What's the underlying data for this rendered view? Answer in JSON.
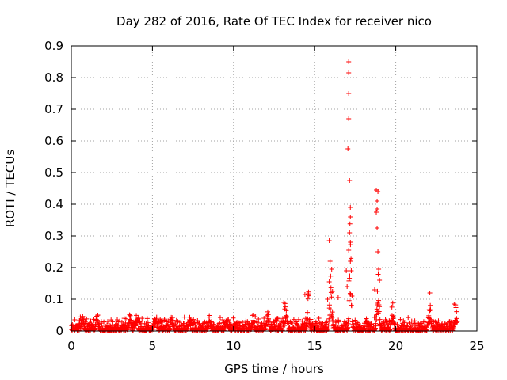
{
  "chart_data": {
    "type": "scatter",
    "title": "Day 282 of 2016, Rate Of TEC Index for receiver nico",
    "xlabel": "GPS time / hours",
    "ylabel": "ROTI / TECUs",
    "xlim": [
      0,
      25
    ],
    "ylim": [
      0,
      0.9
    ],
    "grid": true,
    "marker": "+",
    "marker_color": "#ff0000",
    "xticks": [
      "0",
      "5",
      "10",
      "15",
      "20",
      "25"
    ],
    "yticks": [
      "0",
      "0.1",
      "0.2",
      "0.3",
      "0.4",
      "0.5",
      "0.6",
      "0.7",
      "0.8",
      "0.9"
    ],
    "xtick_values": [
      0,
      5,
      10,
      15,
      20,
      25
    ],
    "ytick_values": [
      0,
      0.1,
      0.2,
      0.3,
      0.4,
      0.5,
      0.6,
      0.7,
      0.8,
      0.9
    ],
    "baseline": {
      "x_start": 0,
      "x_end": 23.8,
      "typical_max": 0.035
    },
    "bumps": [
      {
        "x": 0.7,
        "peak": 0.05
      },
      {
        "x": 1.6,
        "peak": 0.065
      },
      {
        "x": 3.6,
        "peak": 0.055
      },
      {
        "x": 4.0,
        "peak": 0.05
      },
      {
        "x": 5.2,
        "peak": 0.07
      },
      {
        "x": 6.2,
        "peak": 0.06
      },
      {
        "x": 7.3,
        "peak": 0.07
      },
      {
        "x": 8.5,
        "peak": 0.05
      },
      {
        "x": 9.6,
        "peak": 0.05
      },
      {
        "x": 11.2,
        "peak": 0.06
      },
      {
        "x": 12.1,
        "peak": 0.065
      },
      {
        "x": 13.2,
        "peak": 0.095
      },
      {
        "x": 14.6,
        "peak": 0.13
      },
      {
        "x": 16.0,
        "peak": 0.2
      },
      {
        "x": 17.2,
        "peak": 0.38
      },
      {
        "x": 18.9,
        "peak": 0.2
      },
      {
        "x": 19.8,
        "peak": 0.11
      },
      {
        "x": 22.1,
        "peak": 0.09
      },
      {
        "x": 23.7,
        "peak": 0.085
      }
    ],
    "outliers": [
      {
        "x": 17.1,
        "y": 0.85
      },
      {
        "x": 17.1,
        "y": 0.815
      },
      {
        "x": 17.1,
        "y": 0.75
      },
      {
        "x": 17.1,
        "y": 0.67
      },
      {
        "x": 17.05,
        "y": 0.575
      },
      {
        "x": 17.15,
        "y": 0.475
      },
      {
        "x": 17.2,
        "y": 0.39
      },
      {
        "x": 17.2,
        "y": 0.36
      },
      {
        "x": 17.15,
        "y": 0.31
      },
      {
        "x": 17.2,
        "y": 0.28
      },
      {
        "x": 17.1,
        "y": 0.255
      },
      {
        "x": 17.2,
        "y": 0.22
      },
      {
        "x": 16.95,
        "y": 0.19
      },
      {
        "x": 17.0,
        "y": 0.14
      },
      {
        "x": 16.45,
        "y": 0.105
      },
      {
        "x": 15.9,
        "y": 0.285
      },
      {
        "x": 15.95,
        "y": 0.22
      },
      {
        "x": 16.05,
        "y": 0.195
      },
      {
        "x": 15.9,
        "y": 0.155
      },
      {
        "x": 16.1,
        "y": 0.125
      },
      {
        "x": 15.8,
        "y": 0.1
      },
      {
        "x": 18.8,
        "y": 0.445
      },
      {
        "x": 18.9,
        "y": 0.44
      },
      {
        "x": 18.85,
        "y": 0.41
      },
      {
        "x": 18.85,
        "y": 0.385
      },
      {
        "x": 18.8,
        "y": 0.375
      },
      {
        "x": 18.85,
        "y": 0.325
      },
      {
        "x": 18.9,
        "y": 0.25
      },
      {
        "x": 18.95,
        "y": 0.195
      },
      {
        "x": 19.0,
        "y": 0.16
      },
      {
        "x": 18.7,
        "y": 0.13
      },
      {
        "x": 14.4,
        "y": 0.115
      },
      {
        "x": 13.1,
        "y": 0.09
      },
      {
        "x": 22.1,
        "y": 0.12
      },
      {
        "x": 23.6,
        "y": 0.085
      }
    ]
  }
}
